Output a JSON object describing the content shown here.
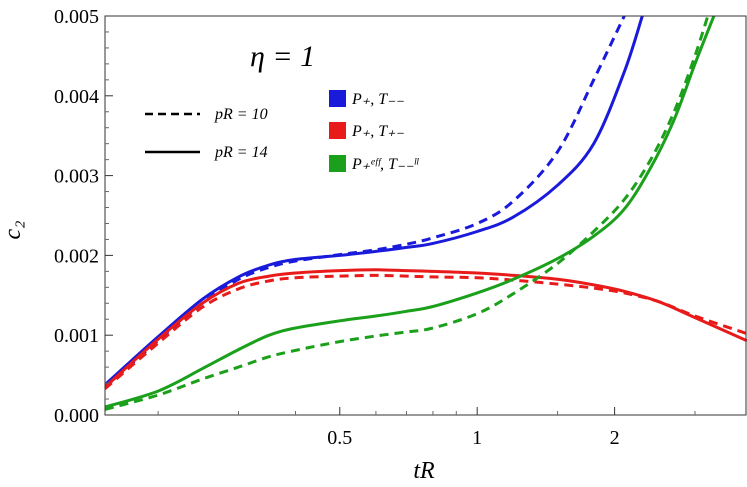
{
  "chart_data": {
    "type": "line",
    "title": "",
    "xlabel": "tR",
    "ylabel": "c₂",
    "x_scale": "log",
    "xlim": [
      0.153,
      3.9
    ],
    "ylim": [
      0,
      0.005
    ],
    "x_ticks": [
      0.5,
      1,
      2
    ],
    "x_tick_labels": [
      "0.5",
      "1",
      "2"
    ],
    "y_ticks": [
      0,
      0.001,
      0.002,
      0.003,
      0.004,
      0.005
    ],
    "y_tick_labels": [
      "0.000",
      "0.001",
      "0.002",
      "0.003",
      "0.004",
      "0.005"
    ],
    "grid": false,
    "annotation": "η = 1",
    "style_legend": [
      {
        "label": "pR = 10",
        "dash": "dashed"
      },
      {
        "label": "pR = 14",
        "dash": "solid"
      }
    ],
    "color_legend": [
      {
        "label": "P₊, T₋₋",
        "color": "#1a1adb"
      },
      {
        "label": "P₊, T₊₋",
        "color": "#e81a1a"
      },
      {
        "label": "P₊ᵉᶠᶠ, T₋₋ˡˡ",
        "color": "#1aa01a"
      }
    ],
    "series": [
      {
        "color": "#1a1adb",
        "dash": "dashed",
        "x": [
          0.153,
          0.2,
          0.25,
          0.3,
          0.35,
          0.4,
          0.5,
          0.6,
          0.7,
          0.8,
          1.0,
          1.2,
          1.5,
          1.8,
          2.1
        ],
        "y": [
          0.00035,
          0.00093,
          0.0014,
          0.0017,
          0.00185,
          0.00193,
          0.00201,
          0.00207,
          0.00214,
          0.00222,
          0.0024,
          0.00268,
          0.0033,
          0.0042,
          0.005
        ]
      },
      {
        "color": "#1a1adb",
        "dash": "solid",
        "x": [
          0.153,
          0.2,
          0.25,
          0.3,
          0.35,
          0.4,
          0.5,
          0.6,
          0.7,
          0.8,
          1.0,
          1.2,
          1.5,
          1.8,
          2.1,
          2.3
        ],
        "y": [
          0.00038,
          0.00098,
          0.00145,
          0.00173,
          0.00188,
          0.00195,
          0.002,
          0.00205,
          0.0021,
          0.00215,
          0.0023,
          0.00248,
          0.00288,
          0.0034,
          0.0043,
          0.005
        ]
      },
      {
        "color": "#e81a1a",
        "dash": "dashed",
        "x": [
          0.153,
          0.2,
          0.25,
          0.3,
          0.35,
          0.4,
          0.5,
          0.6,
          0.7,
          0.8,
          1.0,
          1.2,
          1.5,
          1.8,
          2.1,
          2.5,
          3.0,
          3.9
        ],
        "y": [
          0.00033,
          0.0009,
          0.00135,
          0.00158,
          0.00168,
          0.00172,
          0.00174,
          0.00175,
          0.00174,
          0.00173,
          0.00172,
          0.00169,
          0.00164,
          0.00159,
          0.00153,
          0.00142,
          0.00124,
          0.00102
        ]
      },
      {
        "color": "#e81a1a",
        "dash": "solid",
        "x": [
          0.153,
          0.2,
          0.25,
          0.3,
          0.35,
          0.4,
          0.5,
          0.6,
          0.7,
          0.8,
          1.0,
          1.2,
          1.5,
          1.8,
          2.1,
          2.5,
          3.0,
          3.9
        ],
        "y": [
          0.00035,
          0.00095,
          0.0014,
          0.00165,
          0.00174,
          0.00178,
          0.00181,
          0.00182,
          0.00181,
          0.0018,
          0.00178,
          0.00175,
          0.0017,
          0.00163,
          0.00155,
          0.00142,
          0.00122,
          0.00093
        ]
      },
      {
        "color": "#1aa01a",
        "dash": "dashed",
        "x": [
          0.153,
          0.2,
          0.25,
          0.3,
          0.35,
          0.4,
          0.5,
          0.6,
          0.7,
          0.8,
          1.0,
          1.2,
          1.5,
          1.8,
          2.1,
          2.4,
          2.7,
          3.0,
          3.2
        ],
        "y": [
          7e-05,
          0.00025,
          0.00045,
          0.0006,
          0.00073,
          0.00081,
          0.00092,
          0.00099,
          0.00104,
          0.00109,
          0.00127,
          0.00152,
          0.0019,
          0.0023,
          0.0027,
          0.0032,
          0.0038,
          0.0045,
          0.005
        ]
      },
      {
        "color": "#1aa01a",
        "dash": "solid",
        "x": [
          0.153,
          0.2,
          0.25,
          0.3,
          0.35,
          0.4,
          0.5,
          0.6,
          0.7,
          0.8,
          1.0,
          1.2,
          1.5,
          1.8,
          2.1,
          2.4,
          2.7,
          3.0,
          3.3
        ],
        "y": [
          0.0001,
          0.0003,
          0.00058,
          0.00082,
          0.001,
          0.00109,
          0.00118,
          0.00124,
          0.0013,
          0.00136,
          0.00153,
          0.0017,
          0.00196,
          0.00224,
          0.00258,
          0.0031,
          0.0037,
          0.0044,
          0.005
        ]
      }
    ]
  }
}
